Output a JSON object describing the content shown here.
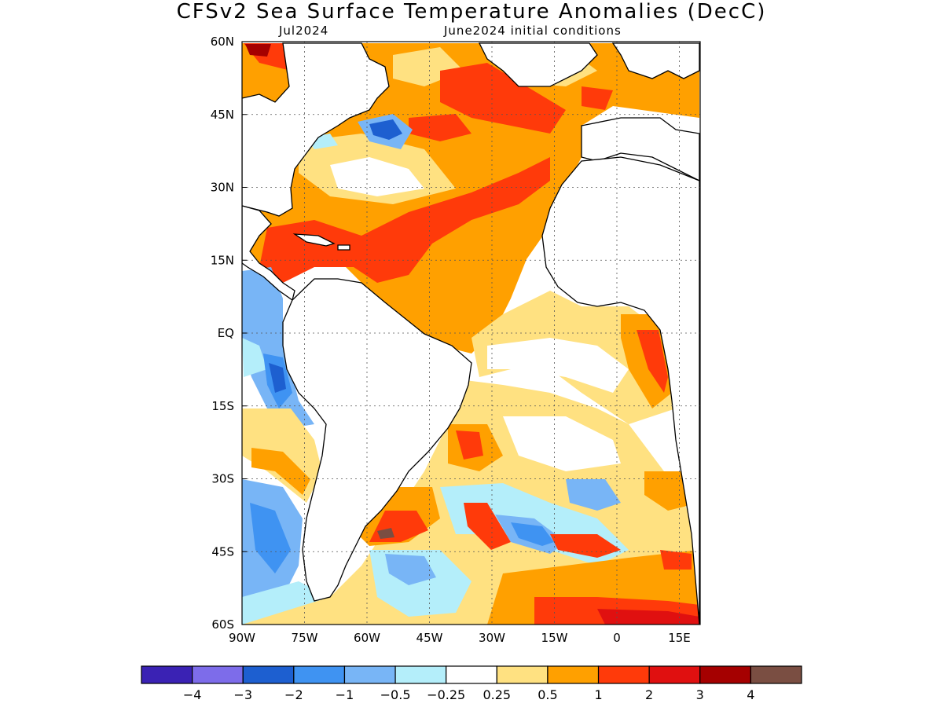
{
  "title": "CFSv2 Sea Surface Temperature Anomalies (DecC)",
  "forecast_month": "Jul2024",
  "initial_conditions": "June2024 initial conditions",
  "map": {
    "lon_range": [
      -90,
      20
    ],
    "lat_range": [
      -60,
      60
    ],
    "lat_ticks": [
      "60N",
      "45N",
      "30N",
      "15N",
      "EQ",
      "15S",
      "30S",
      "45S",
      "60S"
    ],
    "lon_ticks": [
      "90W",
      "75W",
      "60W",
      "45W",
      "30W",
      "15W",
      "0",
      "15E"
    ],
    "grid": "dotted",
    "land_color": "#ffffff"
  },
  "colorbar": {
    "colors": [
      "#3a22b4",
      "#7d6cea",
      "#1d5fd0",
      "#3f93f2",
      "#78b5f6",
      "#b4eefa",
      "#ffffff",
      "#ffe181",
      "#ffa000",
      "#ff3a0a",
      "#e01010",
      "#a50000",
      "#7a4e42"
    ],
    "labels": [
      "−4",
      "−3",
      "−2",
      "−1",
      "−0.5",
      "−0.25",
      "0.25",
      "0.5",
      "1",
      "2",
      "3",
      "4"
    ]
  }
}
